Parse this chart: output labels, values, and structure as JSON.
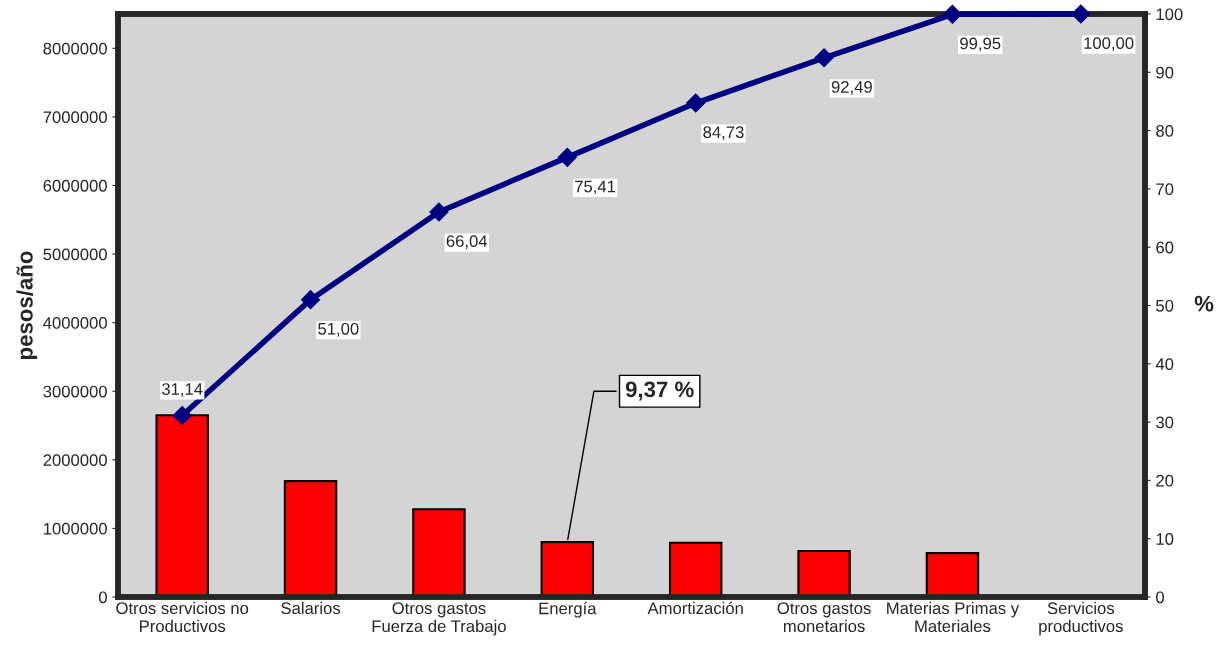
{
  "chart_data": {
    "type": "bar",
    "categories": [
      "Otros servicios no\nProductivos",
      "Salarios",
      "Otros gastos\nFuerza de Trabajo",
      "Energía",
      "Amortización",
      "Otros gastos\nmonetarios",
      "Materias Primas y\nMateriales",
      "Servicios\nproductivos"
    ],
    "series": [
      {
        "color": "#ff0000",
        "values": [
          2650000,
          1690000,
          1280000,
          800000,
          790000,
          670000,
          640000,
          null
        ]
      },
      {
        "type": "line",
        "axis": "y2",
        "color": "#000080",
        "marker": "diamond",
        "line_style": "solid",
        "values": [
          31.14,
          51.0,
          66.04,
          75.41,
          84.73,
          92.49,
          99.95,
          100.0
        ],
        "value_labels": [
          "31,14",
          "51,00",
          "66,04",
          "75,41",
          "84,73",
          "92,49",
          "99,95",
          "100,00"
        ]
      }
    ],
    "ylabel": "pesos/año",
    "y2label": "%",
    "ylim": [
      0,
      8500000
    ],
    "yticks": [
      0,
      1000000,
      2000000,
      3000000,
      4000000,
      5000000,
      6000000,
      7000000,
      8000000
    ],
    "y2lim": [
      0,
      100
    ],
    "y2ticks": [
      0,
      10,
      20,
      30,
      40,
      50,
      60,
      70,
      80,
      90,
      100
    ],
    "annotations": [
      {
        "text": "9,37 %",
        "x": "Energía",
        "y": 800000
      }
    ],
    "grid": false,
    "legend": false
  }
}
